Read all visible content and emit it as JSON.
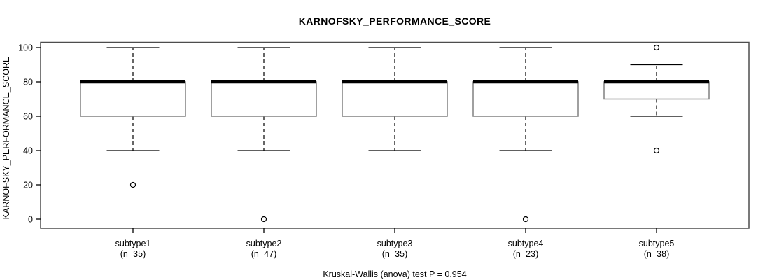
{
  "chart_data": {
    "type": "boxplot",
    "title": "KARNOFSKY_PERFORMANCE_SCORE",
    "ylabel": "KARNOFSKY_PERFORMANCE_SCORE",
    "xlabel": "",
    "footer": "Kruskal-Wallis (anova) test P = 0.954",
    "ylim": [
      0,
      100
    ],
    "yticks": [
      0,
      20,
      40,
      60,
      80,
      100
    ],
    "grid": false,
    "legend": "none",
    "categories": [
      "subtype1",
      "subtype2",
      "subtype3",
      "subtype4",
      "subtype5"
    ],
    "group_sizes": [
      35,
      47,
      35,
      23,
      38
    ],
    "x_tick_label_lines": [
      [
        "subtype1",
        "(n=35)"
      ],
      [
        "subtype2",
        "(n=47)"
      ],
      [
        "subtype3",
        "(n=35)"
      ],
      [
        "subtype4",
        "(n=23)"
      ],
      [
        "subtype5",
        "(n=38)"
      ]
    ],
    "series": [
      {
        "name": "subtype1",
        "n": 35,
        "whisker_low": 40,
        "q1": 60,
        "median": 80,
        "q3": 80,
        "whisker_high": 100,
        "outliers": [
          20
        ]
      },
      {
        "name": "subtype2",
        "n": 47,
        "whisker_low": 40,
        "q1": 60,
        "median": 80,
        "q3": 80,
        "whisker_high": 100,
        "outliers": [
          0
        ]
      },
      {
        "name": "subtype3",
        "n": 35,
        "whisker_low": 40,
        "q1": 60,
        "median": 80,
        "q3": 80,
        "whisker_high": 100,
        "outliers": []
      },
      {
        "name": "subtype4",
        "n": 23,
        "whisker_low": 40,
        "q1": 60,
        "median": 80,
        "q3": 80,
        "whisker_high": 100,
        "outliers": [
          0
        ]
      },
      {
        "name": "subtype5",
        "n": 38,
        "whisker_low": 60,
        "q1": 70,
        "median": 80,
        "q3": 80,
        "whisker_high": 90,
        "outliers": [
          100,
          40
        ]
      }
    ],
    "colors": {
      "background": "#ffffff",
      "text": "#000000",
      "box_fill": "#ffffff",
      "box_stroke": "#808080",
      "median": "#000000",
      "whisker": "#000000",
      "outlier_stroke": "#000000",
      "plot_border": "#4d4d4d"
    }
  }
}
